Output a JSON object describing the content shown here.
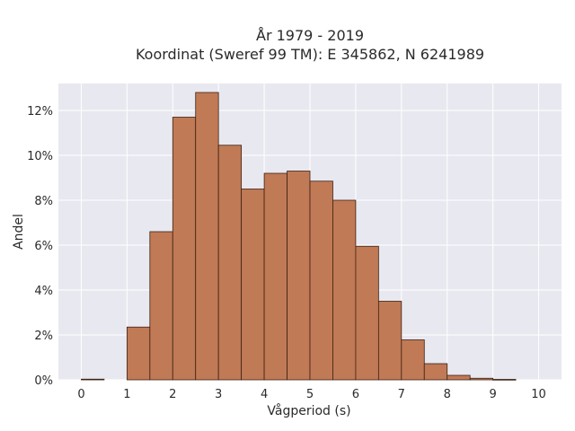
{
  "chart_data": {
    "type": "bar",
    "title_line1": "År 1979 - 2019",
    "title_line2": "Koordinat (Sweref 99 TM): E 345862, N 6241989",
    "xlabel": "Vågperiod (s)",
    "ylabel": "Andel",
    "xlim": [
      -0.5,
      10.5
    ],
    "ylim": [
      0,
      13.2
    ],
    "bin_width": 0.5,
    "bins": [
      {
        "x": 0.0,
        "value": 0.03
      },
      {
        "x": 0.5,
        "value": 0.0
      },
      {
        "x": 1.0,
        "value": 2.35
      },
      {
        "x": 1.5,
        "value": 6.6
      },
      {
        "x": 2.0,
        "value": 11.7
      },
      {
        "x": 2.5,
        "value": 12.8
      },
      {
        "x": 3.0,
        "value": 10.45
      },
      {
        "x": 3.5,
        "value": 8.5
      },
      {
        "x": 4.0,
        "value": 9.2
      },
      {
        "x": 4.5,
        "value": 9.3
      },
      {
        "x": 5.0,
        "value": 8.85
      },
      {
        "x": 5.5,
        "value": 8.0
      },
      {
        "x": 6.0,
        "value": 5.95
      },
      {
        "x": 6.5,
        "value": 3.5
      },
      {
        "x": 7.0,
        "value": 1.78
      },
      {
        "x": 7.5,
        "value": 0.72
      },
      {
        "x": 8.0,
        "value": 0.2
      },
      {
        "x": 8.5,
        "value": 0.07
      },
      {
        "x": 9.0,
        "value": 0.02
      },
      {
        "x": 9.5,
        "value": 0.0
      }
    ],
    "x_ticks": [
      {
        "value": 0,
        "label": "0"
      },
      {
        "value": 1,
        "label": "1"
      },
      {
        "value": 2,
        "label": "2"
      },
      {
        "value": 3,
        "label": "3"
      },
      {
        "value": 4,
        "label": "4"
      },
      {
        "value": 5,
        "label": "5"
      },
      {
        "value": 6,
        "label": "6"
      },
      {
        "value": 7,
        "label": "7"
      },
      {
        "value": 8,
        "label": "8"
      },
      {
        "value": 9,
        "label": "9"
      },
      {
        "value": 10,
        "label": "10"
      }
    ],
    "y_ticks": [
      {
        "value": 0,
        "label": "0%"
      },
      {
        "value": 2,
        "label": "2%"
      },
      {
        "value": 4,
        "label": "4%"
      },
      {
        "value": 6,
        "label": "6%"
      },
      {
        "value": 8,
        "label": "8%"
      },
      {
        "value": 10,
        "label": "10%"
      },
      {
        "value": 12,
        "label": "12%"
      }
    ],
    "grid": true,
    "colors": {
      "bar_fill": "#c07a55",
      "bar_stroke": "#3d2114",
      "plot_bg": "#e8e8f0",
      "grid": "#ffffff"
    }
  }
}
